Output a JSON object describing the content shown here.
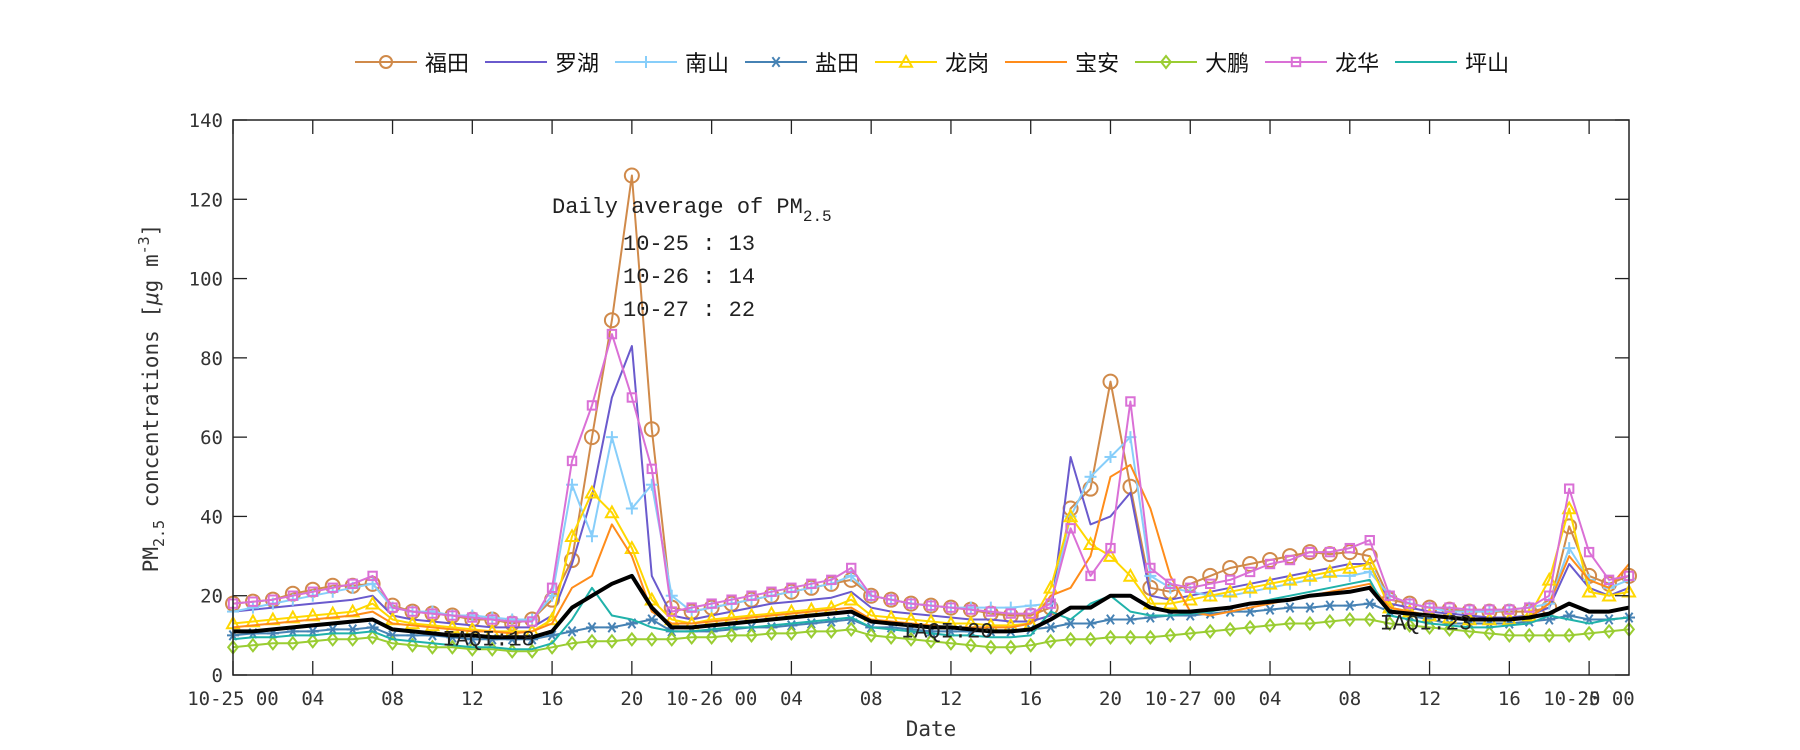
{
  "chart_data": {
    "type": "line",
    "title": "",
    "xlabel": "Date",
    "ylabel": "PM2.5 concentrations [μg m^-3]",
    "ylabel_parts": {
      "main": "PM",
      "sub": "2.5",
      "rest": " concentrations [",
      "mu": "μ",
      "unit": "g m",
      "sup": "-3",
      "close": "]"
    },
    "ylim": [
      0,
      140
    ],
    "yticks": [
      0,
      20,
      40,
      60,
      80,
      100,
      120,
      140
    ],
    "xlim_hours": [
      0,
      70
    ],
    "xticks": [
      {
        "h": 0,
        "label": "10-25 00"
      },
      {
        "h": 4,
        "label": "04"
      },
      {
        "h": 8,
        "label": "08"
      },
      {
        "h": 12,
        "label": "12"
      },
      {
        "h": 16,
        "label": "16"
      },
      {
        "h": 20,
        "label": "20"
      },
      {
        "h": 24,
        "label": "10-26 00"
      },
      {
        "h": 28,
        "label": "04"
      },
      {
        "h": 32,
        "label": "08"
      },
      {
        "h": 36,
        "label": "12"
      },
      {
        "h": 40,
        "label": "16"
      },
      {
        "h": 44,
        "label": "20"
      },
      {
        "h": 48,
        "label": "10-27 00"
      },
      {
        "h": 52,
        "label": "04"
      },
      {
        "h": 56,
        "label": "08"
      },
      {
        "h": 60,
        "label": "12"
      },
      {
        "h": 64,
        "label": "16"
      },
      {
        "h": 68,
        "label": "20"
      },
      {
        "h": 72,
        "label": "10-25 00"
      }
    ],
    "grid": false,
    "legend_position": "top-outside",
    "annotations": {
      "daily_title": "Daily average of PM",
      "daily_title_sub": "2.5",
      "daily_lines": [
        "10-25 : 13",
        "10-26 : 14",
        "10-27 : 22"
      ],
      "iaqi": [
        {
          "h": 10.5,
          "y": 9.5,
          "label": "IAQI:18"
        },
        {
          "h": 33.5,
          "y": 11.5,
          "label": "IAQI:20"
        },
        {
          "h": 57.5,
          "y": 13.5,
          "label": "IAQI:23"
        }
      ]
    },
    "series": [
      {
        "name": "福田",
        "color": "#D08A4A",
        "marker": "circle",
        "values": [
          18,
          18.5,
          19,
          20.5,
          21.5,
          22.5,
          22.5,
          23,
          17.5,
          16,
          15.5,
          15,
          14,
          14,
          13,
          14,
          19,
          29,
          60,
          89.5,
          126,
          62,
          17,
          16,
          17,
          18,
          19,
          20,
          21,
          22,
          23,
          24,
          20,
          19,
          18,
          17.5,
          17,
          16.5,
          15.5,
          15,
          15,
          17,
          42,
          47,
          74,
          47.5,
          22,
          21,
          23,
          25,
          27,
          28,
          29,
          30,
          31,
          30.5,
          31,
          30,
          19,
          18,
          17,
          16.5,
          16,
          16,
          16,
          16,
          17,
          37.5,
          25,
          23,
          25
        ]
      },
      {
        "name": "罗湖",
        "color": "#6A5ACD",
        "marker": "none",
        "values": [
          16,
          16.5,
          17,
          17.5,
          18,
          18.5,
          19,
          20,
          15,
          14,
          13.5,
          13,
          12.5,
          12,
          12,
          12,
          15,
          28,
          45,
          70,
          83,
          25,
          15,
          14,
          15,
          16,
          17,
          18,
          18.5,
          19,
          19.5,
          21,
          17,
          16,
          15.5,
          15,
          14.5,
          14,
          14,
          13.5,
          13.5,
          15,
          55,
          38,
          40,
          46,
          20,
          19,
          20,
          21,
          22,
          23,
          24,
          25,
          26,
          27,
          28,
          28,
          18,
          17,
          16,
          15.5,
          15,
          14.5,
          14.5,
          15,
          17,
          28,
          22,
          20,
          22
        ]
      },
      {
        "name": "南山",
        "color": "#87CEFA",
        "marker": "plus",
        "values": [
          16,
          17,
          18,
          19,
          20,
          21,
          22,
          23,
          17,
          16,
          16,
          15,
          15,
          14.5,
          14,
          14,
          20,
          48,
          35,
          60,
          42,
          48,
          20,
          16,
          17,
          18,
          19,
          20,
          21,
          22,
          23,
          25,
          20,
          19,
          18,
          17.5,
          17,
          17,
          17,
          17,
          17.5,
          18,
          40,
          50,
          55,
          60,
          25,
          22,
          21,
          20,
          20,
          21,
          22,
          23,
          24,
          25,
          25,
          26,
          20,
          18,
          17,
          16,
          16,
          16,
          16.5,
          17,
          18,
          32,
          24,
          22,
          24
        ]
      },
      {
        "name": "盐田",
        "color": "#4682B4",
        "marker": "asterisk",
        "values": [
          10,
          10.5,
          10.5,
          11,
          11,
          11.5,
          11.5,
          12,
          10,
          10,
          10,
          9.5,
          9,
          9,
          9,
          9,
          10,
          11,
          12,
          12,
          13,
          14,
          11,
          11,
          11,
          11.5,
          12,
          12,
          12.5,
          13,
          13.5,
          14,
          12,
          12,
          11.5,
          11,
          11,
          11,
          11,
          11,
          11.5,
          12,
          13,
          13,
          14,
          14,
          14.5,
          15,
          15,
          15.5,
          16,
          16,
          16.5,
          17,
          17,
          17.5,
          17.5,
          18,
          16,
          15,
          14,
          13,
          13,
          13,
          13,
          13.5,
          14,
          15,
          14,
          14,
          14.5
        ]
      },
      {
        "name": "龙岗",
        "color": "#FFD700",
        "marker": "triangle",
        "values": [
          13,
          13.5,
          14,
          14.5,
          15,
          15.5,
          16,
          18,
          14,
          13,
          12.5,
          12,
          11.5,
          11,
          11,
          11,
          14,
          35,
          46,
          41,
          32,
          19,
          14,
          13,
          14,
          14.5,
          15,
          15.5,
          16,
          16.5,
          17,
          19,
          15,
          14.5,
          14,
          13.5,
          13,
          13,
          12.5,
          12.5,
          13,
          22,
          40,
          33,
          30,
          25,
          18,
          18,
          19,
          20,
          21,
          22,
          23,
          24,
          25,
          26,
          27,
          28,
          17,
          16,
          15,
          14.5,
          14,
          14,
          14,
          15,
          24,
          42,
          21,
          20,
          21
        ]
      },
      {
        "name": "宝安",
        "color": "#FF8C1A",
        "marker": "none",
        "values": [
          12,
          12.5,
          13,
          13.5,
          14,
          14.5,
          15,
          16,
          13,
          12.5,
          12,
          11.5,
          11,
          11,
          10.5,
          11,
          13,
          22,
          25,
          38,
          30,
          16,
          13,
          13,
          13.5,
          14,
          14.5,
          15,
          15.5,
          16,
          16.5,
          17,
          14,
          13.5,
          13,
          12.5,
          12,
          12,
          12,
          12,
          13,
          20,
          22,
          30,
          50,
          53,
          42,
          25,
          16,
          15,
          16,
          17,
          18,
          19,
          20,
          21,
          22,
          23,
          17,
          16,
          15,
          14.5,
          14,
          14,
          14,
          14.5,
          18,
          30,
          24,
          22,
          28
        ]
      },
      {
        "name": "大鹏",
        "color": "#9ACD32",
        "marker": "diamond",
        "values": [
          7,
          7.5,
          8,
          8,
          8.5,
          9,
          9,
          9.5,
          8,
          7.5,
          7,
          7,
          6.5,
          6.5,
          6,
          6,
          7,
          8,
          8.5,
          8.5,
          9,
          9,
          9,
          9.5,
          9.5,
          10,
          10,
          10.5,
          10.5,
          11,
          11,
          11.5,
          10,
          9.5,
          9,
          8.5,
          8,
          7.5,
          7,
          7,
          7.5,
          8.5,
          9,
          9,
          9.5,
          9.5,
          9.5,
          10,
          10.5,
          11,
          11.5,
          12,
          12.5,
          13,
          13,
          13.5,
          14,
          14,
          13,
          12.5,
          12,
          11.5,
          11,
          10.5,
          10,
          10,
          10,
          10,
          10.5,
          11,
          11.5
        ]
      },
      {
        "name": "龙华",
        "color": "#DA70D6",
        "marker": "square",
        "values": [
          18,
          18.5,
          19,
          20,
          21,
          22,
          23,
          25,
          17,
          16,
          15.5,
          15,
          14.5,
          14,
          13.5,
          13.5,
          22,
          54,
          68,
          86,
          70,
          52,
          16,
          17,
          18,
          19,
          20,
          21,
          22,
          23,
          24,
          27,
          20,
          19,
          18,
          17.5,
          17,
          16.5,
          16,
          15.5,
          15.5,
          18,
          37,
          25,
          32,
          69,
          27,
          23,
          22,
          23,
          24,
          26,
          28,
          29,
          31,
          31,
          32,
          34,
          20,
          18,
          17,
          17,
          16.5,
          16.5,
          16.5,
          17,
          20,
          47,
          31,
          24,
          25
        ]
      },
      {
        "name": "坪山",
        "color": "#20B2AA",
        "marker": "none",
        "values": [
          9,
          9.5,
          9.5,
          10,
          10,
          10.5,
          10.5,
          11,
          9,
          8.5,
          8,
          7.5,
          7,
          7,
          6.5,
          6.5,
          8,
          14,
          22,
          15,
          14,
          12,
          11,
          11,
          11.5,
          12,
          12,
          12.5,
          13,
          13.5,
          14,
          14.5,
          12,
          11.5,
          11,
          10.5,
          10,
          10,
          9.5,
          9.5,
          10,
          16,
          14,
          18,
          20,
          16,
          15,
          15,
          15.5,
          16,
          17,
          18,
          19,
          20,
          21,
          22,
          23,
          24,
          15,
          14,
          13,
          12.5,
          12,
          12,
          12.5,
          13,
          15,
          14,
          13,
          14,
          14.5
        ]
      },
      {
        "name": "average",
        "color": "#000000",
        "marker": "none",
        "width": 4,
        "legend": false,
        "values": [
          11,
          11,
          11.5,
          12,
          12.5,
          13,
          13.5,
          14,
          11.5,
          11,
          10.5,
          10,
          10,
          9.5,
          9.5,
          9.5,
          11,
          17,
          20,
          23,
          25,
          17,
          12,
          12,
          12.5,
          13,
          13.5,
          14,
          14.5,
          15,
          15.5,
          16,
          13.5,
          13,
          12.5,
          12,
          12,
          11.5,
          11,
          11,
          11.5,
          14,
          17,
          17,
          20,
          20,
          17,
          16,
          16,
          16.5,
          17,
          18,
          18.5,
          19,
          20,
          20.5,
          21,
          22,
          16,
          15.5,
          15,
          14.5,
          14,
          14,
          14,
          14.5,
          15.5,
          18,
          16,
          16,
          17
        ]
      }
    ]
  }
}
